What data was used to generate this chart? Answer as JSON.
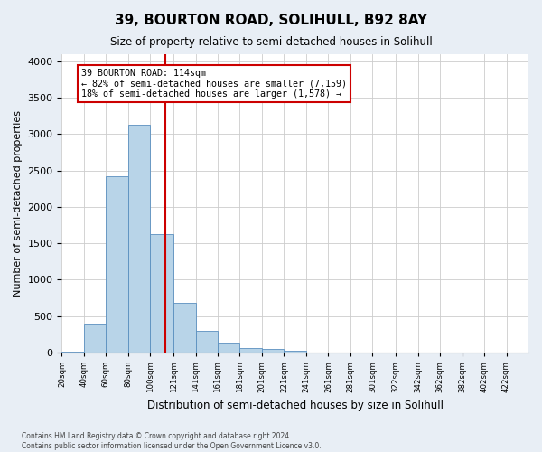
{
  "title": "39, BOURTON ROAD, SOLIHULL, B92 8AY",
  "subtitle": "Size of property relative to semi-detached houses in Solihull",
  "xlabel": "Distribution of semi-detached houses by size in Solihull",
  "ylabel": "Number of semi-detached properties",
  "bin_labels": [
    "20sqm",
    "40sqm",
    "60sqm",
    "80sqm",
    "100sqm",
    "121sqm",
    "141sqm",
    "161sqm",
    "181sqm",
    "201sqm",
    "221sqm",
    "241sqm",
    "261sqm",
    "281sqm",
    "301sqm",
    "322sqm",
    "342sqm",
    "362sqm",
    "382sqm",
    "402sqm",
    "422sqm"
  ],
  "bin_edges": [
    20,
    40,
    60,
    80,
    100,
    121,
    141,
    161,
    181,
    201,
    221,
    241,
    261,
    281,
    301,
    322,
    342,
    362,
    382,
    402,
    422,
    442
  ],
  "bar_values": [
    15,
    400,
    2420,
    3130,
    1630,
    680,
    300,
    130,
    60,
    45,
    25,
    0,
    0,
    0,
    0,
    0,
    0,
    0,
    0,
    0,
    0
  ],
  "bar_color": "#b8d4e8",
  "bar_edge_color": "#5a8fbf",
  "property_size": 114,
  "vline_color": "#cc0000",
  "annotation_text": "39 BOURTON ROAD: 114sqm\n← 82% of semi-detached houses are smaller (7,159)\n18% of semi-detached houses are larger (1,578) →",
  "annotation_box_color": "white",
  "annotation_box_edge": "#cc0000",
  "ylim": [
    0,
    4100
  ],
  "yticks": [
    0,
    500,
    1000,
    1500,
    2000,
    2500,
    3000,
    3500,
    4000
  ],
  "footer_line1": "Contains HM Land Registry data © Crown copyright and database right 2024.",
  "footer_line2": "Contains public sector information licensed under the Open Government Licence v3.0.",
  "bg_color": "#e8eef5",
  "plot_bg_color": "#ffffff"
}
